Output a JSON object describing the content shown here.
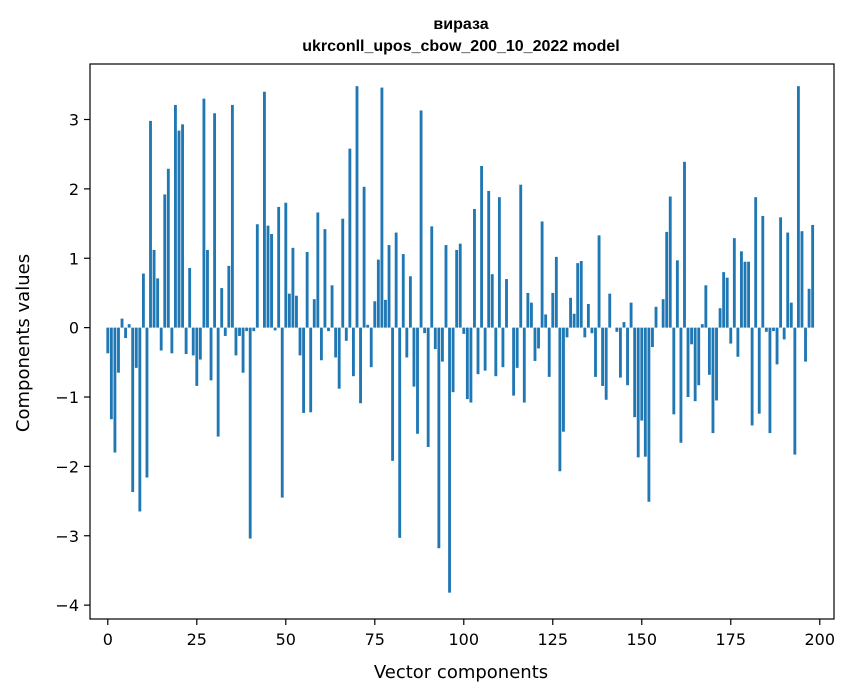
{
  "chart_data": {
    "type": "bar",
    "title_line1": "вираза",
    "title_line2": "ukrconll_upos_cbow_200_10_2022 model",
    "xlabel": "Vector components",
    "ylabel": "Components values",
    "xlim": [
      -5,
      204
    ],
    "ylim": [
      -4.2,
      3.8
    ],
    "xticks": [
      0,
      25,
      50,
      75,
      100,
      125,
      150,
      175,
      200
    ],
    "yticks": [
      -4,
      -3,
      -2,
      -1,
      0,
      1,
      2,
      3
    ],
    "grid": false,
    "bar_color": "#1f77b4",
    "values": [
      -0.37,
      -1.32,
      -1.8,
      -0.65,
      0.13,
      -0.15,
      0.05,
      -2.37,
      -0.58,
      -2.65,
      0.78,
      -2.16,
      2.98,
      1.12,
      0.71,
      -0.33,
      1.92,
      2.29,
      -0.37,
      3.21,
      2.84,
      2.93,
      -0.38,
      0.86,
      -0.4,
      -0.84,
      -0.46,
      3.3,
      1.12,
      -0.76,
      3.09,
      -1.57,
      0.57,
      -0.12,
      0.89,
      3.21,
      -0.4,
      -0.12,
      -0.65,
      -0.05,
      -3.04,
      -0.05,
      1.49,
      0.0,
      3.4,
      1.47,
      1.35,
      -0.04,
      1.74,
      -2.45,
      1.8,
      0.49,
      1.15,
      0.46,
      -0.4,
      -1.23,
      1.09,
      -1.22,
      0.41,
      1.66,
      -0.47,
      1.42,
      -0.05,
      0.61,
      -0.43,
      -0.88,
      1.57,
      -0.19,
      2.58,
      -0.7,
      3.48,
      -1.09,
      2.03,
      0.04,
      -0.57,
      0.38,
      0.98,
      3.46,
      0.4,
      1.19,
      -1.92,
      1.37,
      -3.03,
      1.06,
      -0.43,
      0.74,
      -0.85,
      -1.53,
      3.13,
      -0.08,
      -1.72,
      1.46,
      -0.31,
      -3.18,
      -0.49,
      1.19,
      -3.82,
      -0.93,
      1.12,
      1.21,
      -0.09,
      -1.03,
      -1.08,
      1.71,
      -0.67,
      2.33,
      -0.62,
      1.97,
      0.77,
      -0.7,
      1.88,
      -0.57,
      0.7,
      0.0,
      -0.98,
      -0.58,
      2.06,
      -1.08,
      0.5,
      0.36,
      -0.48,
      -0.3,
      1.53,
      0.19,
      -0.71,
      0.5,
      1.02,
      -2.07,
      -1.5,
      -0.14,
      0.43,
      0.2,
      0.93,
      0.96,
      -0.14,
      0.34,
      -0.08,
      -0.71,
      1.33,
      -0.84,
      -1.04,
      0.49,
      0.0,
      -0.06,
      -0.72,
      0.08,
      -0.83,
      0.36,
      -1.29,
      -1.87,
      -1.34,
      -1.86,
      -2.51,
      -0.28,
      0.3,
      0.0,
      0.41,
      1.38,
      1.89,
      -1.25,
      0.97,
      -1.66,
      2.39,
      -1.0,
      -0.24,
      -1.06,
      -0.83,
      0.05,
      0.61,
      -0.68,
      -1.52,
      -1.05,
      0.28,
      0.8,
      0.72,
      -0.23,
      1.29,
      -0.42,
      1.1,
      0.95,
      0.95,
      -1.41,
      1.88,
      -1.24,
      1.61,
      -0.06,
      -1.52,
      -0.05,
      -0.53,
      1.59,
      -0.17,
      1.37,
      0.36,
      -1.83,
      3.48,
      1.39,
      -0.49,
      0.56,
      1.48,
      0.0
    ]
  }
}
